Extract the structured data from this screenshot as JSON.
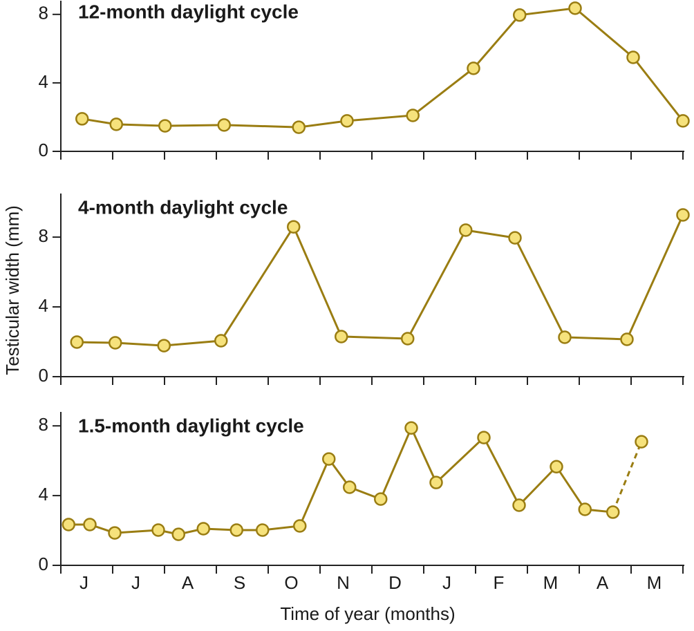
{
  "chart_data": [
    {
      "type": "line",
      "title": "12-month daylight cycle",
      "x": [
        0.41,
        1.07,
        2.01,
        3.15,
        4.59,
        5.52,
        6.79,
        7.96,
        8.85,
        9.92,
        11.04,
        12.0
      ],
      "values": [
        1.9,
        1.58,
        1.49,
        1.54,
        1.41,
        1.78,
        2.1,
        4.85,
        7.96,
        8.36,
        5.49,
        1.78
      ],
      "xlim": [
        0,
        12
      ],
      "xticks": [
        0,
        1,
        2,
        3,
        4,
        5,
        6,
        7,
        8,
        9,
        10,
        11,
        12
      ],
      "ylim": [
        0,
        8.8
      ],
      "yticks": [
        0,
        4,
        8
      ],
      "color": "#9a7d12",
      "marker_color": "#f6e27c"
    },
    {
      "type": "line",
      "title": "4-month daylight cycle",
      "ylabel": "Testicular width (mm)",
      "x": [
        0.31,
        1.05,
        1.99,
        3.09,
        4.49,
        5.41,
        6.69,
        7.81,
        8.76,
        9.72,
        10.92,
        12.0
      ],
      "values": [
        1.98,
        1.94,
        1.78,
        2.06,
        8.59,
        2.3,
        2.18,
        8.4,
        7.96,
        2.26,
        2.14,
        9.27
      ],
      "xlim": [
        0,
        12
      ],
      "xticks": [
        0,
        1,
        2,
        3,
        4,
        5,
        6,
        7,
        8,
        9,
        10,
        11,
        12
      ],
      "ylim": [
        0,
        10.5
      ],
      "yticks": [
        0,
        4,
        8
      ],
      "color": "#9a7d12",
      "marker_color": "#f6e27c"
    },
    {
      "type": "line",
      "title": "1.5-month daylight cycle",
      "xlabel": "Time of year (months)",
      "categories": [
        "J",
        "J",
        "A",
        "S",
        "O",
        "N",
        "D",
        "J",
        "F",
        "M",
        "A",
        "M"
      ],
      "x": [
        0.15,
        0.56,
        1.04,
        1.88,
        2.27,
        2.75,
        3.39,
        3.89,
        4.61,
        5.17,
        5.57,
        6.17,
        6.76,
        7.24,
        8.16,
        8.84,
        9.56,
        10.11,
        10.65,
        11.2
      ],
      "values": [
        2.34,
        2.34,
        1.86,
        2.02,
        1.78,
        2.1,
        2.02,
        2.02,
        2.26,
        6.1,
        4.48,
        3.8,
        7.88,
        4.75,
        7.33,
        3.45,
        5.66,
        3.21,
        3.05,
        7.09
      ],
      "xlim": [
        0,
        12
      ],
      "xticks": [
        0,
        1,
        2,
        3,
        4,
        5,
        6,
        7,
        8,
        9,
        10,
        11,
        12
      ],
      "ylim": [
        0,
        8.8
      ],
      "yticks": [
        0,
        4,
        8
      ],
      "dashed_last_segment": true,
      "color": "#9a7d12",
      "marker_color": "#f6e27c"
    }
  ]
}
